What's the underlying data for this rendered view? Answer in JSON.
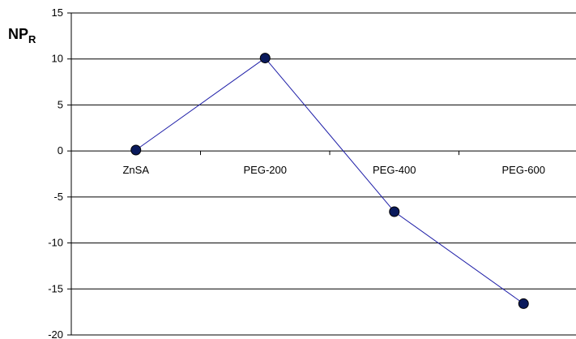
{
  "chart_data": {
    "type": "line",
    "ylabel": "NP",
    "ylabel_subscript": "R",
    "categories": [
      "ZnSA",
      "PEG-200",
      "PEG-400",
      "PEG-600"
    ],
    "series": [
      {
        "values": [
          0.1,
          10.1,
          -6.6,
          -16.6
        ]
      }
    ],
    "ylim": [
      -20,
      15
    ],
    "yticks": [
      15,
      10,
      5,
      0,
      -5,
      -10,
      -15,
      -20
    ],
    "grid": true,
    "line_color": "#1f1fa8",
    "marker_color": "#0a1a5c"
  }
}
